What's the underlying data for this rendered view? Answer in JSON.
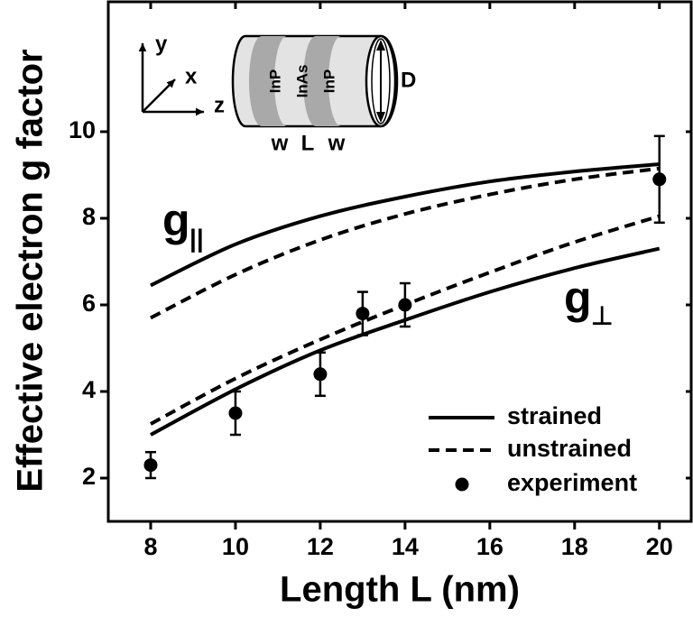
{
  "chart_data": {
    "type": "line",
    "x_label": "Length L (nm)",
    "y_label": "Effective electron g factor",
    "x": [
      8,
      10,
      12,
      14,
      16,
      18,
      20
    ],
    "series": [
      {
        "name": "strained",
        "color": "#000000",
        "dash": "solid",
        "curves": [
          {
            "values": [
              6.45,
              7.4,
              8.05,
              8.5,
              8.85,
              9.08,
              9.25
            ]
          },
          {
            "values": [
              3.0,
              4.05,
              4.95,
              5.65,
              6.3,
              6.85,
              7.3
            ]
          }
        ]
      },
      {
        "name": "unstrained",
        "color": "#000000",
        "dash": "dashed",
        "curves": [
          {
            "values": [
              5.7,
              6.7,
              7.5,
              8.1,
              8.55,
              8.9,
              9.15
            ]
          },
          {
            "values": [
              3.25,
              4.3,
              5.2,
              6.0,
              6.75,
              7.45,
              8.05
            ]
          }
        ]
      }
    ],
    "experiment": {
      "name": "experiment",
      "color": "#000000",
      "x": [
        8,
        10,
        12,
        13,
        14,
        20
      ],
      "values": [
        2.3,
        3.5,
        4.4,
        5.8,
        6.0,
        8.9
      ],
      "errors": [
        0.3,
        0.5,
        0.5,
        0.5,
        0.5,
        1.0
      ]
    },
    "annotations": [
      {
        "text": "g",
        "subscript": "||"
      },
      {
        "text": "g",
        "subscript": "⊥"
      }
    ],
    "inset": {
      "axes": [
        "y",
        "x",
        "z"
      ],
      "layers": [
        "InP",
        "InAs",
        "InP"
      ],
      "diameter": "D",
      "widths": [
        "w",
        "L",
        "w"
      ]
    },
    "xlim": [
      7,
      20.75
    ],
    "ylim": [
      1,
      13
    ],
    "xticks": [
      8,
      10,
      12,
      14,
      16,
      18,
      20
    ],
    "yticks": [
      2,
      4,
      6,
      8,
      10
    ],
    "grid": false
  }
}
